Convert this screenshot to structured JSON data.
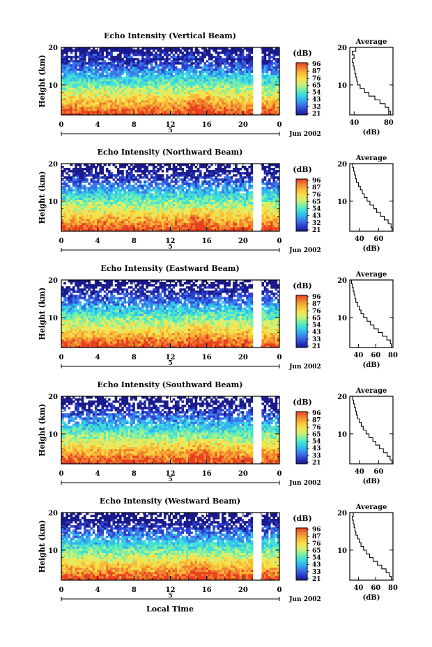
{
  "chart_data": {
    "type": "heatmap",
    "colorbar": {
      "unit": "(dB)",
      "colors": [
        "#1a1a8c",
        "#2c3fd0",
        "#3a78e8",
        "#33b5f0",
        "#3fe0d8",
        "#80f0a0",
        "#d8f070",
        "#f8e048",
        "#f8b838",
        "#f08030",
        "#e84020"
      ]
    },
    "x_axis": {
      "ticks": [
        "0",
        "4",
        "8",
        "12",
        "16",
        "20",
        "0"
      ],
      "day_marker": "5",
      "month_label": "Jun 2002",
      "xlabel": "Local Time"
    },
    "y_axis": {
      "label": "Height (km)",
      "ticks": [
        "20",
        "10"
      ],
      "range": [
        2,
        20
      ]
    },
    "panels": [
      {
        "title": "Echo Intensity (Vertical Beam)",
        "cbar_ticks": [
          "96",
          "87",
          "76",
          "65",
          "54",
          "43",
          "32",
          "21"
        ],
        "avg_title": "Average",
        "avg_xlabel": "(dB)",
        "avg_xticks": [
          "40",
          "80"
        ],
        "avg_xlim": [
          35,
          85
        ],
        "avg_profile": {
          "height": [
            2,
            3,
            4,
            5,
            6,
            7,
            8,
            9,
            10,
            11,
            12,
            13,
            14,
            15,
            16,
            17,
            18,
            19,
            20
          ],
          "value": [
            82,
            80,
            76,
            70,
            64,
            57,
            52,
            47,
            44,
            43,
            42,
            41,
            40,
            39,
            38,
            40,
            38,
            42,
            40
          ]
        }
      },
      {
        "title": "Echo Intensity (Northward Beam)",
        "cbar_ticks": [
          "96",
          "87",
          "76",
          "65",
          "54",
          "43",
          "32",
          "21"
        ],
        "avg_title": "Average",
        "avg_xlabel": "(dB)",
        "avg_xticks": [
          "40",
          "60"
        ],
        "avg_xlim": [
          30,
          75
        ],
        "avg_profile": {
          "height": [
            2,
            3,
            4,
            5,
            6,
            7,
            8,
            9,
            10,
            11,
            12,
            13,
            14,
            15,
            16,
            17,
            18,
            19,
            20
          ],
          "value": [
            74,
            73,
            70,
            66,
            62,
            58,
            55,
            51,
            48,
            45,
            43,
            41,
            39,
            37,
            36,
            35,
            34,
            33,
            32
          ]
        }
      },
      {
        "title": "Echo Intensity (Eastward Beam)",
        "cbar_ticks": [
          "96",
          "87",
          "76",
          "65",
          "54",
          "43",
          "33",
          "21"
        ],
        "avg_title": "Average",
        "avg_xlabel": "(dB)",
        "avg_xticks": [
          "40",
          "60",
          "80"
        ],
        "avg_xlim": [
          30,
          80
        ],
        "avg_profile": {
          "height": [
            2,
            3,
            4,
            5,
            6,
            7,
            8,
            9,
            10,
            11,
            12,
            13,
            14,
            15,
            16,
            17,
            18,
            19,
            20
          ],
          "value": [
            78,
            77,
            73,
            68,
            63,
            58,
            54,
            50,
            46,
            43,
            41,
            39,
            37,
            36,
            35,
            34,
            33,
            32,
            32
          ]
        }
      },
      {
        "title": "Echo Intensity (Southward Beam)",
        "cbar_ticks": [
          "96",
          "87",
          "76",
          "65",
          "54",
          "43",
          "33",
          "21"
        ],
        "avg_title": "Average",
        "avg_xlabel": "(dB)",
        "avg_xticks": [
          "40",
          "60"
        ],
        "avg_xlim": [
          30,
          75
        ],
        "avg_profile": {
          "height": [
            2,
            3,
            4,
            5,
            6,
            7,
            8,
            9,
            10,
            11,
            12,
            13,
            14,
            15,
            16,
            17,
            18,
            19,
            20
          ],
          "value": [
            74,
            72,
            69,
            65,
            61,
            57,
            54,
            50,
            47,
            44,
            42,
            40,
            38,
            37,
            36,
            35,
            34,
            33,
            33
          ]
        }
      },
      {
        "title": "Echo Intensity (Westward Beam)",
        "cbar_ticks": [
          "96",
          "87",
          "76",
          "65",
          "54",
          "43",
          "33",
          "21"
        ],
        "avg_title": "Average",
        "avg_xlabel": "(dB)",
        "avg_xticks": [
          "40",
          "60",
          "80"
        ],
        "avg_xlim": [
          30,
          80
        ],
        "avg_profile": {
          "height": [
            2,
            3,
            4,
            5,
            6,
            7,
            8,
            9,
            10,
            11,
            12,
            13,
            14,
            15,
            16,
            17,
            18,
            19,
            20
          ],
          "value": [
            78,
            76,
            72,
            67,
            62,
            57,
            53,
            49,
            46,
            43,
            41,
            39,
            37,
            36,
            35,
            34,
            33,
            34,
            33
          ]
        }
      }
    ]
  }
}
